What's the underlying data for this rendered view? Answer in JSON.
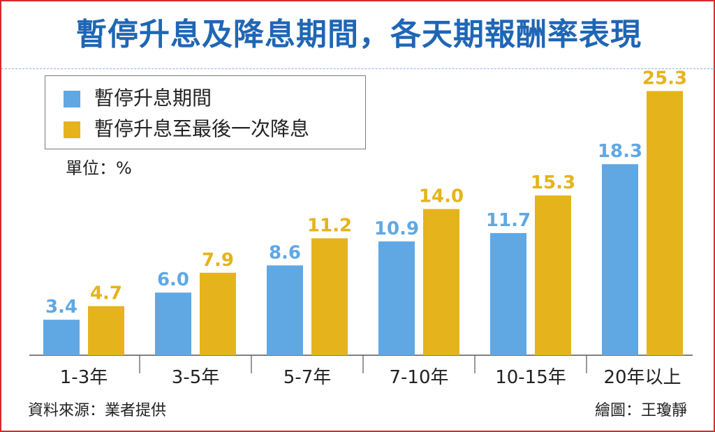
{
  "title": "暫停升息及降息期間，各天期報酬率表現",
  "unit_label": "單位：%",
  "source": "資料來源：業者提供",
  "credit": "繪圖：王瓊靜",
  "colors": {
    "frame_border": "#d62a2a",
    "title": "#1f66b5",
    "series_1": "#5fa8e4",
    "series_2": "#e5b31c",
    "text": "#222222"
  },
  "chart_data": {
    "type": "bar",
    "title": "暫停升息及降息期間，各天期報酬率表現",
    "unit": "%",
    "categories": [
      "1-3年",
      "3-5年",
      "5-7年",
      "7-10年",
      "10-15年",
      "20年以上"
    ],
    "series": [
      {
        "name": "暫停升息期間",
        "values": [
          3.4,
          6.0,
          8.6,
          10.9,
          11.7,
          18.3
        ]
      },
      {
        "name": "暫停升息至最後一次降息",
        "values": [
          4.7,
          7.9,
          11.2,
          14.0,
          15.3,
          25.3
        ]
      }
    ],
    "value_labels": [
      [
        "3.4",
        "6.0",
        "8.6",
        "10.9",
        "11.7",
        "18.3"
      ],
      [
        "4.7",
        "7.9",
        "11.2",
        "14.0",
        "15.3",
        "25.3"
      ]
    ],
    "ylim": [
      0,
      26
    ],
    "grid": false,
    "legend_position": "top-left"
  }
}
